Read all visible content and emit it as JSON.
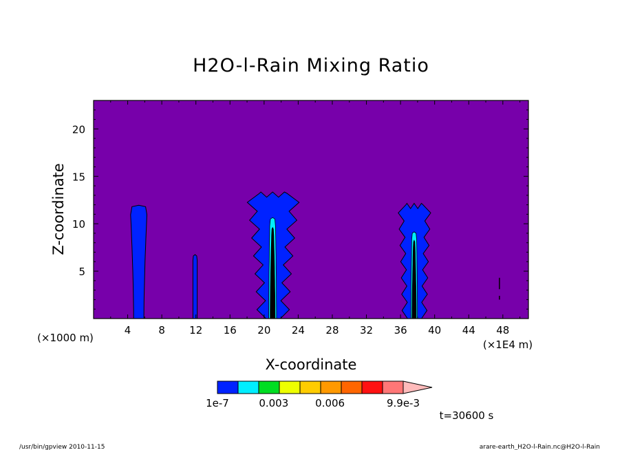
{
  "chart_data": {
    "type": "contour",
    "title": "H2O-l-Rain Mixing Ratio",
    "xlabel": "X-coordinate",
    "ylabel": "Z-coordinate",
    "x_unit_left": "(×1000 m)",
    "x_unit_right": "(×1E4 m)",
    "xlim": [
      0,
      51
    ],
    "ylim": [
      0,
      23
    ],
    "x_ticks": [
      4,
      8,
      12,
      16,
      20,
      24,
      28,
      32,
      36,
      40,
      44,
      48
    ],
    "y_ticks": [
      5,
      10,
      15,
      20
    ],
    "background_color": "#7700aa",
    "colorbar": {
      "colors": [
        "#0022ff",
        "#00eeff",
        "#00dd22",
        "#eeff00",
        "#ffcc00",
        "#ff9900",
        "#ff6600",
        "#ff1111",
        "#ff7777",
        "#ffbbbb"
      ],
      "labels": [
        {
          "text": "1e-7",
          "value": 0
        },
        {
          "text": "0.003",
          "value": 0.003
        },
        {
          "text": "0.006",
          "value": 0.006
        },
        {
          "text": "9.9e-3",
          "value": 0.0099
        }
      ]
    },
    "features": [
      {
        "name": "column-x5",
        "x_center": 5.3,
        "base_half_width": 0.6,
        "top": 11.8,
        "top_half_width": 1.0
      },
      {
        "name": "column-x12",
        "x_center": 11.9,
        "base_half_width": 0.25,
        "top": 6.6,
        "top_half_width": 0.25
      },
      {
        "name": "storm-x21",
        "x_center": 21.0,
        "base_half_width": 1.3,
        "top": 13.2,
        "top_half_width": 2.6,
        "core_top": 10.5
      },
      {
        "name": "storm-x38",
        "x_center": 37.6,
        "base_half_width": 1.1,
        "top": 12.0,
        "top_half_width": 1.6,
        "core_top": 9.0
      },
      {
        "name": "speck-x48",
        "x_center": 47.6,
        "top": 4.3
      }
    ]
  },
  "time_label": "t=30600 s",
  "footer": {
    "left": "/usr/bin/gpview  2010-11-15",
    "right": "arare-earth_H2O-l-Rain.nc@H2O-l-Rain"
  }
}
